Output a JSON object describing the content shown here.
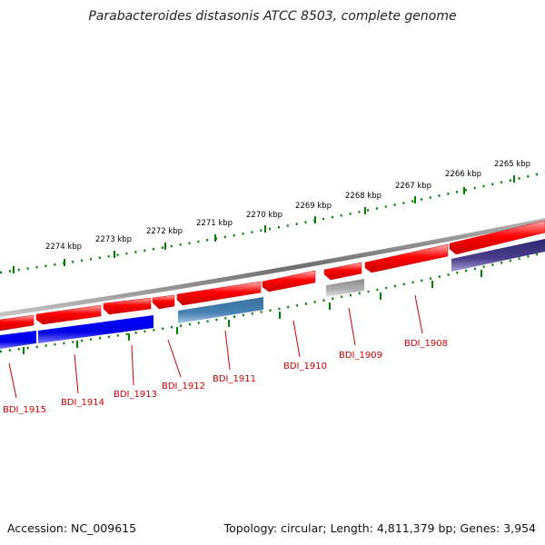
{
  "title": "Parabacteroides distasonis ATCC 8503, complete genome",
  "footer": {
    "accession": "Accession: NC_009615",
    "summary": "Topology: circular; Length: 4,811,379 bp; Genes: 3,954"
  },
  "ruler": {
    "labels": [
      "2274 kbp",
      "2273 kbp",
      "2272 kbp",
      "2271 kbp",
      "2270 kbp",
      "2269 kbp",
      "2268 kbp",
      "2267 kbp",
      "2266 kbp",
      "2265 kbp"
    ]
  },
  "genes": [
    {
      "label": "BDI_1915"
    },
    {
      "label": "BDI_1914"
    },
    {
      "label": "BDI_1913"
    },
    {
      "label": "BDI_1912"
    },
    {
      "label": "BDI_1911"
    },
    {
      "label": "BDI_1910"
    },
    {
      "label": "BDI_1909"
    },
    {
      "label": "BDI_1908"
    }
  ],
  "colors": {
    "forward_cds": "#ff0000",
    "reverse_cds": "#0000ff",
    "steelblue_feature": "#4682b4",
    "pseudo_gray": "#a9a9a9",
    "navy_feature": "#483d8b",
    "backbone": "#808080",
    "ticks": "#008000",
    "labels": "#cc0000"
  }
}
